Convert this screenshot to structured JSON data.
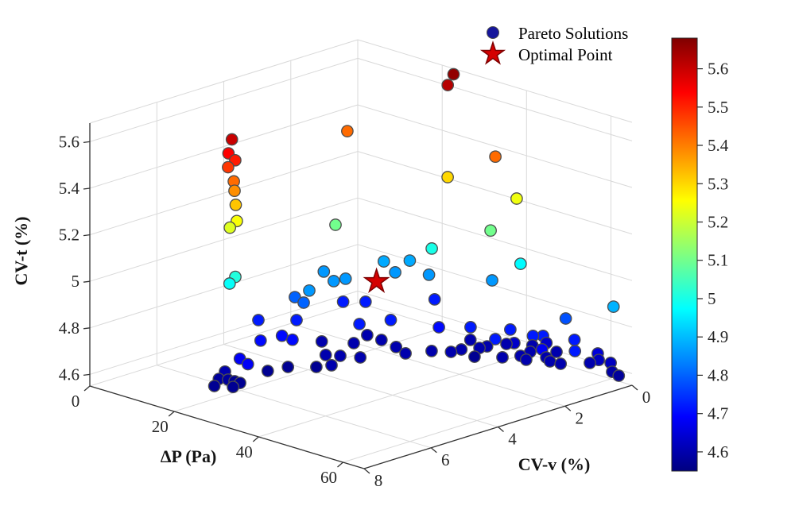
{
  "colors": {
    "background": "#ffffff",
    "grid": "#d9d9d9",
    "axis": "#333333",
    "text": "#262626",
    "point_edge": "#4d4d4d",
    "star_fill": "#d40000",
    "star_edge": "#7e0000",
    "legend_dot": "#16169b"
  },
  "chart_data": {
    "type": "scatter",
    "projection": "3d",
    "title": "",
    "legend": [
      {
        "label": "Pareto Solutions",
        "marker": "dot"
      },
      {
        "label": "Optimal Point",
        "marker": "star"
      }
    ],
    "legend_position": "top-center-right",
    "grid": true,
    "axes": {
      "x": {
        "label": "ΔP (Pa)",
        "min": 0,
        "max": 65,
        "ticks": [
          0,
          20,
          40,
          60
        ]
      },
      "y": {
        "label": "CV-v (%)",
        "min": 0,
        "max": 8,
        "ticks": [
          0,
          2,
          4,
          6,
          8
        ]
      },
      "z": {
        "label": "CV-t (%)",
        "min": 4.55,
        "max": 5.68,
        "ticks": [
          4.6,
          4.8,
          5,
          5.2,
          5.4,
          5.6
        ]
      }
    },
    "colorbar": {
      "min": 4.55,
      "max": 5.68,
      "ticks": [
        4.6,
        4.7,
        4.8,
        4.9,
        5,
        5.1,
        5.2,
        5.3,
        5.4,
        5.5,
        5.6
      ],
      "colormap": "jet",
      "maps_to": "CV-t (%)"
    },
    "optimal_point": [
      34.6,
      3.8,
      5.0
    ],
    "points_format": [
      "dP_Pa",
      "CVv_pct",
      "CVt_pct"
    ],
    "points": [
      [
        16.2,
        5.8,
        5.6
      ],
      [
        15.8,
        5.85,
        5.54
      ],
      [
        16.6,
        5.75,
        5.51
      ],
      [
        15.7,
        5.85,
        5.48
      ],
      [
        16.5,
        5.78,
        5.42
      ],
      [
        16.6,
        5.77,
        5.38
      ],
      [
        16.8,
        5.76,
        5.32
      ],
      [
        16.9,
        5.74,
        5.25
      ],
      [
        15.9,
        5.82,
        5.22
      ],
      [
        16.7,
        5.76,
        5.01
      ],
      [
        15.9,
        5.83,
        4.98
      ],
      [
        23.1,
        0.05,
        5.66
      ],
      [
        23.0,
        0.21,
        5.62
      ],
      [
        10.7,
        1.66,
        5.42
      ],
      [
        38.4,
        0.73,
        5.42
      ],
      [
        29.8,
        1.07,
        5.3
      ],
      [
        41.0,
        0.42,
        5.24
      ],
      [
        16.7,
        2.77,
        5.1
      ],
      [
        37.6,
        0.77,
        5.1
      ],
      [
        28.5,
        1.38,
        5.0
      ],
      [
        42.4,
        0.48,
        4.97
      ],
      [
        63.0,
        0.3,
        4.89
      ],
      [
        35.5,
        0.46,
        4.86
      ],
      [
        11.8,
        2.5,
        4.86
      ],
      [
        16.7,
        2.82,
        4.86
      ],
      [
        17.2,
        2.53,
        4.86
      ],
      [
        16.9,
        1.35,
        4.88
      ],
      [
        20.7,
        1.49,
        4.86
      ],
      [
        19.7,
        0.93,
        4.88
      ],
      [
        25.7,
        1.11,
        4.86
      ],
      [
        17.4,
        3.64,
        4.86
      ],
      [
        12.8,
        3.49,
        4.8
      ],
      [
        16.0,
        3.63,
        4.8
      ],
      [
        51.9,
        0.33,
        4.78
      ],
      [
        13.2,
        2.1,
        4.72
      ],
      [
        15.9,
        1.77,
        4.72
      ],
      [
        23.3,
        0.64,
        4.72
      ],
      [
        32.8,
        1.71,
        4.7
      ],
      [
        38.4,
        1.47,
        4.72
      ],
      [
        44.1,
        1.0,
        4.72
      ],
      [
        46.0,
        1.69,
        4.72
      ],
      [
        49.3,
        0.98,
        4.72
      ],
      [
        50.5,
        0.83,
        4.72
      ],
      [
        55.8,
        0.56,
        4.72
      ],
      [
        60.2,
        1.1,
        4.72
      ],
      [
        23.8,
        2.95,
        4.72
      ],
      [
        10.1,
        4.24,
        4.72
      ],
      [
        14.7,
        3.68,
        4.72
      ],
      [
        19.2,
        5.94,
        4.68
      ],
      [
        22.3,
        6.09,
        4.68
      ],
      [
        16.5,
        4.98,
        4.7
      ],
      [
        17.2,
        4.43,
        4.7
      ],
      [
        20.0,
        4.47,
        4.7
      ],
      [
        26.0,
        2.29,
        4.72
      ],
      [
        52.0,
        1.05,
        4.68
      ],
      [
        15.2,
        2.99,
        4.6
      ],
      [
        19.7,
        2.6,
        4.6
      ],
      [
        21.8,
        2.04,
        4.6
      ],
      [
        18.2,
        2.01,
        4.6
      ],
      [
        20.9,
        3.59,
        4.6
      ],
      [
        23.0,
        3.42,
        4.6
      ],
      [
        25.6,
        4.01,
        4.6
      ],
      [
        21.7,
        3.97,
        4.57
      ],
      [
        26.0,
        3.2,
        4.6
      ],
      [
        26.3,
        2.17,
        4.6
      ],
      [
        29.9,
        2.34,
        4.6
      ],
      [
        32.1,
        1.84,
        4.6
      ],
      [
        34.8,
        1.6,
        4.6
      ],
      [
        35.1,
        1.33,
        4.6
      ],
      [
        32.5,
        0.73,
        4.6
      ],
      [
        36.8,
        1.15,
        4.57
      ],
      [
        36.7,
        0.99,
        4.6
      ],
      [
        37.0,
        0.8,
        4.6
      ],
      [
        38.4,
        0.4,
        4.6
      ],
      [
        44.7,
        0.77,
        4.6
      ],
      [
        46.9,
        0.88,
        4.6
      ],
      [
        44.3,
        0.43,
        4.6
      ],
      [
        50.4,
        0.61,
        4.6
      ],
      [
        45.5,
        0.1,
        4.63
      ],
      [
        47.5,
        0.05,
        4.6
      ],
      [
        52.6,
        0.57,
        4.6
      ],
      [
        55.8,
        0.1,
        4.6
      ],
      [
        57.6,
        0.09,
        4.65
      ],
      [
        57.5,
        0.05,
        4.62
      ],
      [
        60.1,
        0.02,
        4.62
      ],
      [
        61.0,
        0.09,
        4.59
      ],
      [
        62.4,
        0.07,
        4.58
      ],
      [
        43.1,
        1.11,
        4.6
      ],
      [
        41.7,
        0.58,
        4.63
      ],
      [
        42.1,
        0.09,
        4.6
      ],
      [
        48.4,
        0.47,
        4.6
      ],
      [
        15.2,
        5.88,
        4.6
      ],
      [
        15.5,
        6.1,
        4.58
      ],
      [
        16.9,
        6.0,
        4.58
      ],
      [
        17.4,
        5.87,
        4.57
      ],
      [
        18.7,
        5.87,
        4.57
      ],
      [
        16.8,
        6.4,
        4.57
      ],
      [
        19.4,
        6.17,
        4.57
      ],
      [
        17.4,
        4.88,
        4.57
      ],
      [
        18.3,
        4.39,
        4.57
      ]
    ]
  }
}
